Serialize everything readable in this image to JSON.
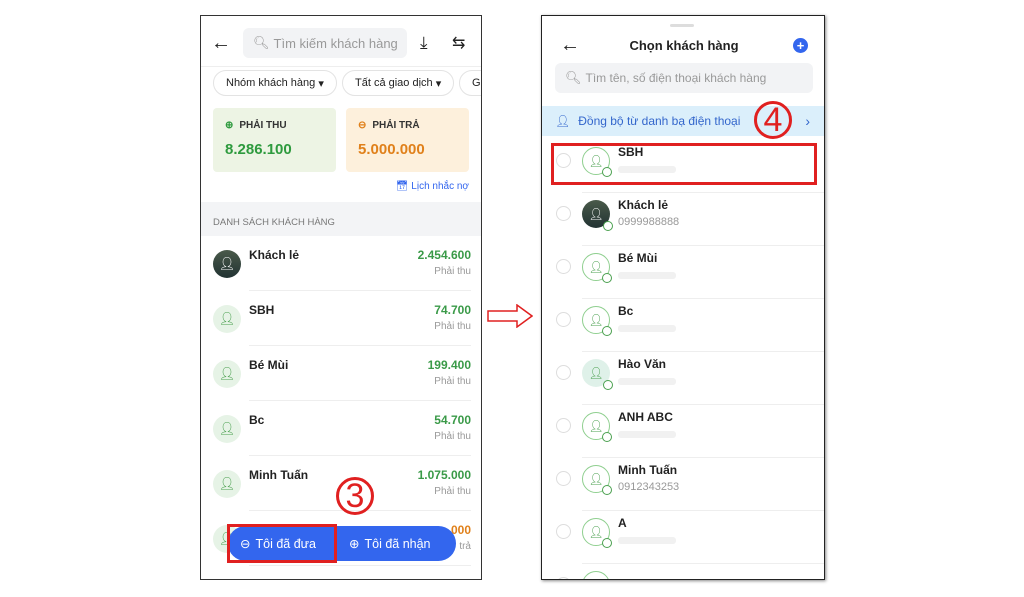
{
  "left": {
    "search_placeholder": "Tìm kiếm khách hàng",
    "filters": [
      "Nhóm khách hàng",
      "Tất cả giao dịch",
      "Gi"
    ],
    "receivable": {
      "label": "PHẢI THU",
      "value": "8.286.100",
      "color": "#2e9a3e"
    },
    "payable": {
      "label": "PHẢI TRẢ",
      "value": "5.000.000",
      "color": "#e0801a"
    },
    "reminder_link": "Lịch nhắc nợ",
    "section_title": "DANH SÁCH KHÁCH HÀNG",
    "customers": [
      {
        "name": "Khách lẻ",
        "amount": "2.454.600",
        "status": "Phải thu",
        "photo": true
      },
      {
        "name": "SBH",
        "amount": "74.700",
        "status": "Phải thu"
      },
      {
        "name": "Bé Mùi",
        "amount": "199.400",
        "status": "Phải thu"
      },
      {
        "name": "Bc",
        "amount": "54.700",
        "status": "Phải thu"
      },
      {
        "name": "Minh Tuấn",
        "amount": "1.075.000",
        "status": "Phải thu"
      },
      {
        "name": "",
        "amount": "000",
        "status": "trả",
        "payable": true
      }
    ],
    "actions": {
      "gave": "Tôi đã đưa",
      "received": "Tôi đã nhận",
      "color": "#3366ee"
    },
    "step_marker": "3"
  },
  "right": {
    "title": "Chọn khách hàng",
    "search_placeholder": "Tìm tên, số điện thoại khách hàng",
    "sync_label": "Đồng bộ từ danh bạ điện thoại",
    "step_marker": "4",
    "customers": [
      {
        "name": "SBH",
        "phone": ""
      },
      {
        "name": "Khách lẻ",
        "phone": "0999988888",
        "photo": true
      },
      {
        "name": "Bé Mùi",
        "phone": ""
      },
      {
        "name": "Bc",
        "phone": ""
      },
      {
        "name": "Hào Văn",
        "phone": "",
        "filled": true
      },
      {
        "name": "ANH ABC",
        "phone": ""
      },
      {
        "name": "Minh Tuấn",
        "phone": "0912343253"
      },
      {
        "name": "A",
        "phone": ""
      },
      {
        "name": "",
        "phone": ""
      }
    ]
  },
  "highlight_color": "#e02020"
}
